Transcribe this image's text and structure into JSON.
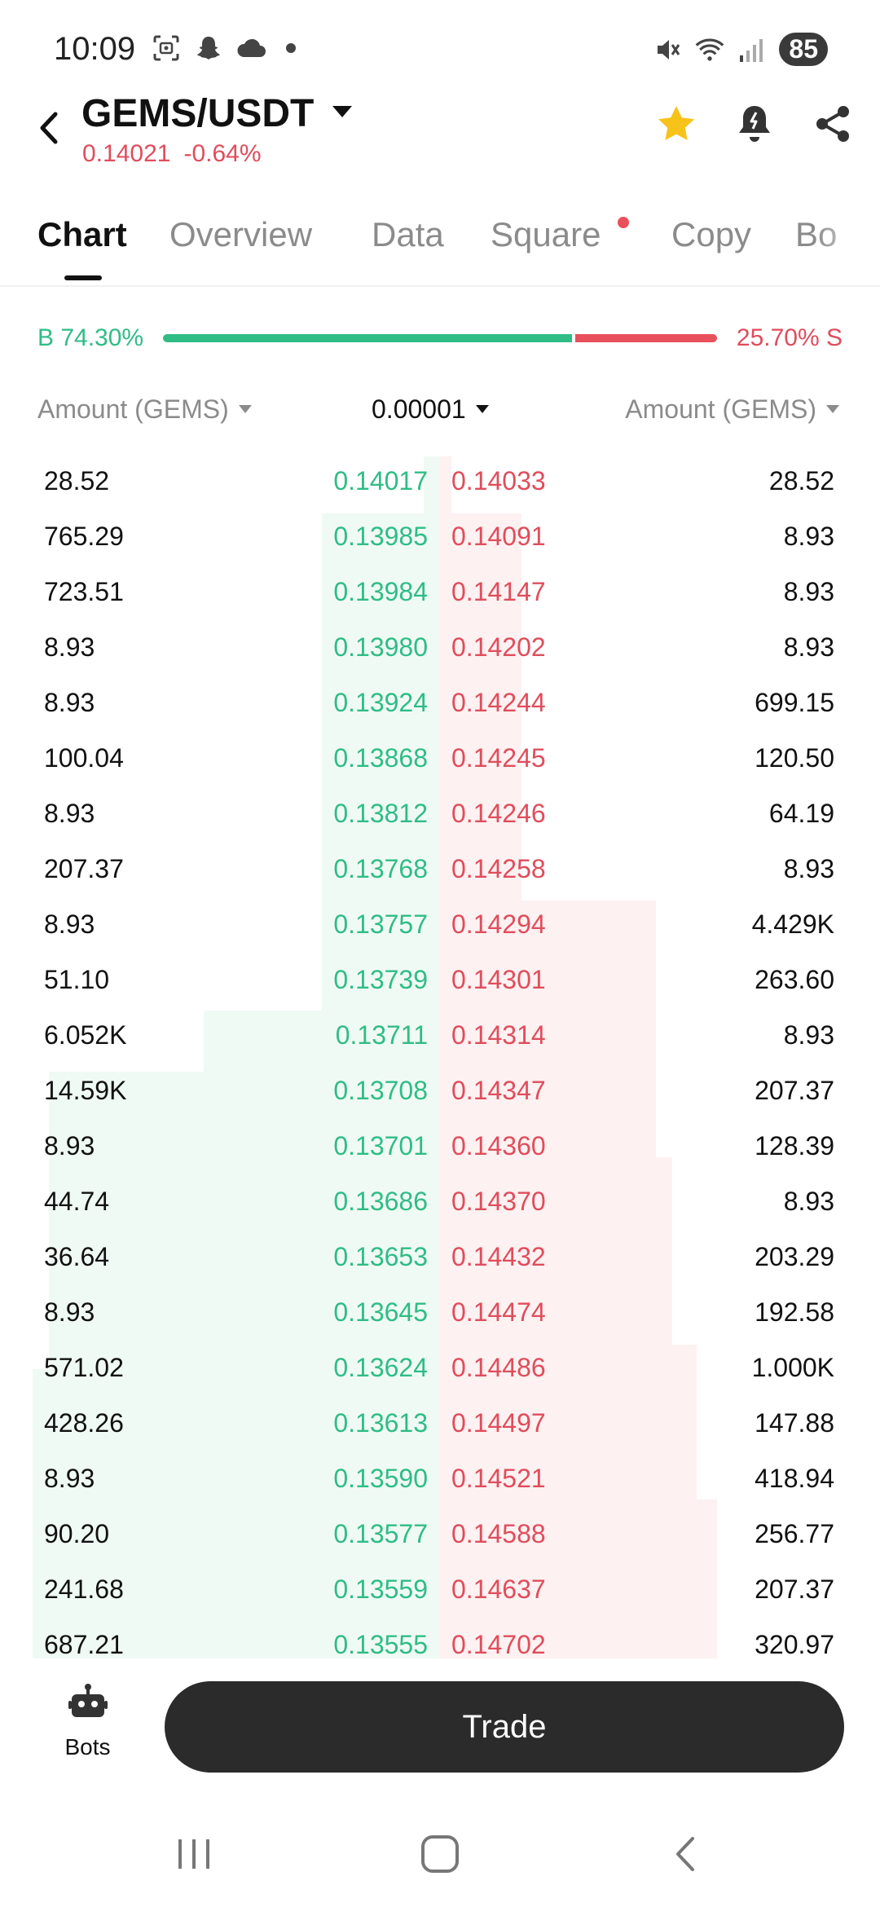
{
  "status_bar": {
    "time": "10:09",
    "battery": "85",
    "icons_left": [
      "screenshot-icon",
      "snapchat-icon",
      "cloud-icon",
      "dot-icon"
    ],
    "icons_right": [
      "mute-icon",
      "wifi-icon",
      "signal-icon",
      "battery-icon"
    ]
  },
  "header": {
    "pair": "GEMS/USDT",
    "price": "0.14021",
    "change": "-0.64%",
    "icons": [
      "star-icon",
      "alert-bell-icon",
      "share-icon"
    ],
    "star_color": "#f7c21a"
  },
  "tabs": [
    {
      "label": "Chart",
      "active": true
    },
    {
      "label": "Overview",
      "active": false
    },
    {
      "label": "Data",
      "active": false
    },
    {
      "label": "Square",
      "active": false,
      "dot": true
    },
    {
      "label": "Copy",
      "active": false
    },
    {
      "label": "Bo",
      "active": false
    }
  ],
  "ratio": {
    "buy_label": "B 74.30%",
    "sell_label": "25.70% S",
    "buy_fraction": 0.743
  },
  "columns": {
    "left": "Amount (GEMS)",
    "precision": "0.00001",
    "right": "Amount (GEMS)"
  },
  "order_book": [
    {
      "bid_qty": "28.52",
      "bid_price": "0.14017",
      "ask_price": "0.14033",
      "ask_qty": "28.52"
    },
    {
      "bid_qty": "765.29",
      "bid_price": "0.13985",
      "ask_price": "0.14091",
      "ask_qty": "8.93"
    },
    {
      "bid_qty": "723.51",
      "bid_price": "0.13984",
      "ask_price": "0.14147",
      "ask_qty": "8.93"
    },
    {
      "bid_qty": "8.93",
      "bid_price": "0.13980",
      "ask_price": "0.14202",
      "ask_qty": "8.93"
    },
    {
      "bid_qty": "8.93",
      "bid_price": "0.13924",
      "ask_price": "0.14244",
      "ask_qty": "699.15"
    },
    {
      "bid_qty": "100.04",
      "bid_price": "0.13868",
      "ask_price": "0.14245",
      "ask_qty": "120.50"
    },
    {
      "bid_qty": "8.93",
      "bid_price": "0.13812",
      "ask_price": "0.14246",
      "ask_qty": "64.19"
    },
    {
      "bid_qty": "207.37",
      "bid_price": "0.13768",
      "ask_price": "0.14258",
      "ask_qty": "8.93"
    },
    {
      "bid_qty": "8.93",
      "bid_price": "0.13757",
      "ask_price": "0.14294",
      "ask_qty": "4.429K"
    },
    {
      "bid_qty": "51.10",
      "bid_price": "0.13739",
      "ask_price": "0.14301",
      "ask_qty": "263.60"
    },
    {
      "bid_qty": "6.052K",
      "bid_price": "0.13711",
      "ask_price": "0.14314",
      "ask_qty": "8.93"
    },
    {
      "bid_qty": "14.59K",
      "bid_price": "0.13708",
      "ask_price": "0.14347",
      "ask_qty": "207.37"
    },
    {
      "bid_qty": "8.93",
      "bid_price": "0.13701",
      "ask_price": "0.14360",
      "ask_qty": "128.39"
    },
    {
      "bid_qty": "44.74",
      "bid_price": "0.13686",
      "ask_price": "0.14370",
      "ask_qty": "8.93"
    },
    {
      "bid_qty": "36.64",
      "bid_price": "0.13653",
      "ask_price": "0.14432",
      "ask_qty": "203.29"
    },
    {
      "bid_qty": "8.93",
      "bid_price": "0.13645",
      "ask_price": "0.14474",
      "ask_qty": "192.58"
    },
    {
      "bid_qty": "571.02",
      "bid_price": "0.13624",
      "ask_price": "0.14486",
      "ask_qty": "1.000K"
    },
    {
      "bid_qty": "428.26",
      "bid_price": "0.13613",
      "ask_price": "0.14497",
      "ask_qty": "147.88"
    },
    {
      "bid_qty": "8.93",
      "bid_price": "0.13590",
      "ask_price": "0.14521",
      "ask_qty": "418.94"
    },
    {
      "bid_qty": "90.20",
      "bid_price": "0.13577",
      "ask_price": "0.14588",
      "ask_qty": "256.77"
    },
    {
      "bid_qty": "241.68",
      "bid_price": "0.13559",
      "ask_price": "0.14637",
      "ask_qty": "207.37"
    },
    {
      "bid_qty": "687.21",
      "bid_price": "0.13555",
      "ask_price": "0.14702",
      "ask_qty": "320.97"
    }
  ],
  "bottom_bar": {
    "bots_label": "Bots",
    "trade_label": "Trade"
  },
  "colors": {
    "buy": "#2fbd85",
    "sell": "#e04d5c",
    "dark_button": "#2b2b2b"
  }
}
